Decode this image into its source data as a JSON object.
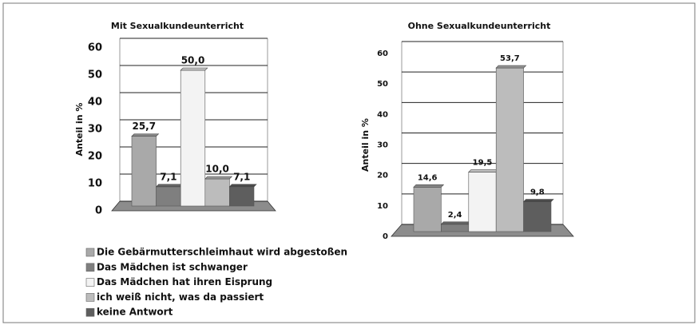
{
  "chart_data": [
    {
      "type": "bar",
      "title": "Mit Sexualkundeunterricht",
      "ylabel": "Anteil in %",
      "values": [
        25.7,
        7.1,
        50.0,
        10.0,
        7.1
      ],
      "value_labels": [
        "25,7",
        "7,1",
        "50,0",
        "10,0",
        "7,1"
      ],
      "ylim": [
        0,
        60
      ],
      "yticks": [
        0,
        10,
        20,
        30,
        40,
        50,
        60
      ],
      "grid": true
    },
    {
      "type": "bar",
      "title": "Ohne Sexualkundeunterricht",
      "ylabel": "Anteil in %",
      "values": [
        14.6,
        2.4,
        19.5,
        53.7,
        9.8
      ],
      "value_labels": [
        "14,6",
        "2,4",
        "19,5",
        "53,7",
        "9,8"
      ],
      "ylim": [
        0,
        60
      ],
      "yticks": [
        0,
        10,
        20,
        30,
        40,
        50,
        60
      ],
      "grid": true
    }
  ],
  "legend": [
    {
      "name": "Die Gebärmutterschleimhaut wird abgestoßen",
      "color": "#a9a9a9"
    },
    {
      "name": "Das Mädchen ist schwanger",
      "color": "#7f7f7f"
    },
    {
      "name": "Das Mädchen hat ihren Eisprung",
      "color": "#f3f3f3"
    },
    {
      "name": "ich weiß nicht, was da passiert",
      "color": "#bcbcbc"
    },
    {
      "name": "keine Antwort",
      "color": "#5e5e5e"
    }
  ]
}
